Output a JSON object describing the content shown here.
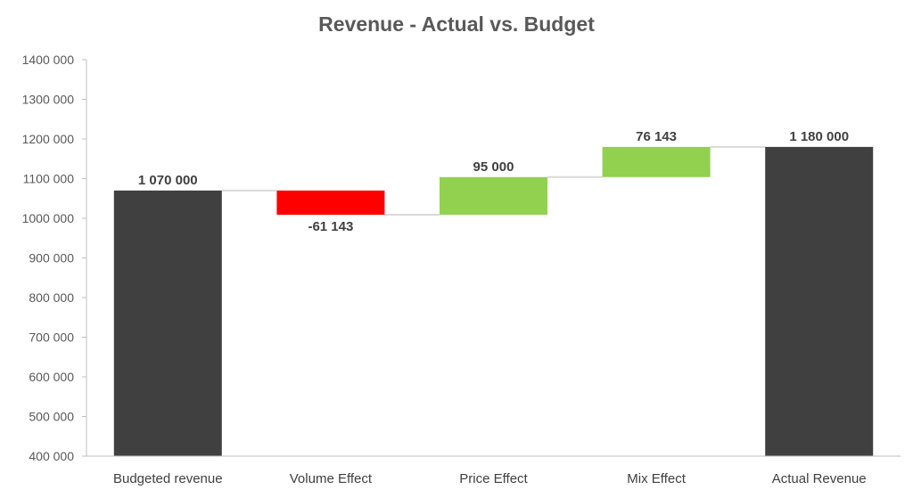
{
  "chart_data": {
    "type": "bar",
    "subtype": "waterfall",
    "title": "Revenue - Actual vs. Budget",
    "xlabel": "",
    "ylabel": "",
    "ylim": [
      400000,
      1400000
    ],
    "yticks": [
      400000,
      500000,
      600000,
      700000,
      800000,
      900000,
      1000000,
      1100000,
      1200000,
      1300000,
      1400000
    ],
    "ytick_labels": [
      "400 000",
      "500 000",
      "600 000",
      "700 000",
      "800 000",
      "900 000",
      "1000 000",
      "1100 000",
      "1200 000",
      "1300 000",
      "1400 000"
    ],
    "grid": false,
    "legend": "none",
    "categories": [
      "Budgeted revenue",
      "Volume Effect",
      "Price Effect",
      "Mix Effect",
      "Actual Revenue"
    ],
    "values": [
      1070000,
      -61143,
      95000,
      76143,
      1180000
    ],
    "kinds": [
      "total",
      "delta",
      "delta",
      "delta",
      "total"
    ],
    "data_labels": [
      "1 070 000",
      "-61 143",
      "95 000",
      "76 143",
      "1 180 000"
    ],
    "colors": {
      "total": "#404040",
      "decrease": "#ff0000",
      "increase": "#92d050",
      "connector": "#d9d9d9",
      "axis": "#bfbfbf"
    }
  }
}
